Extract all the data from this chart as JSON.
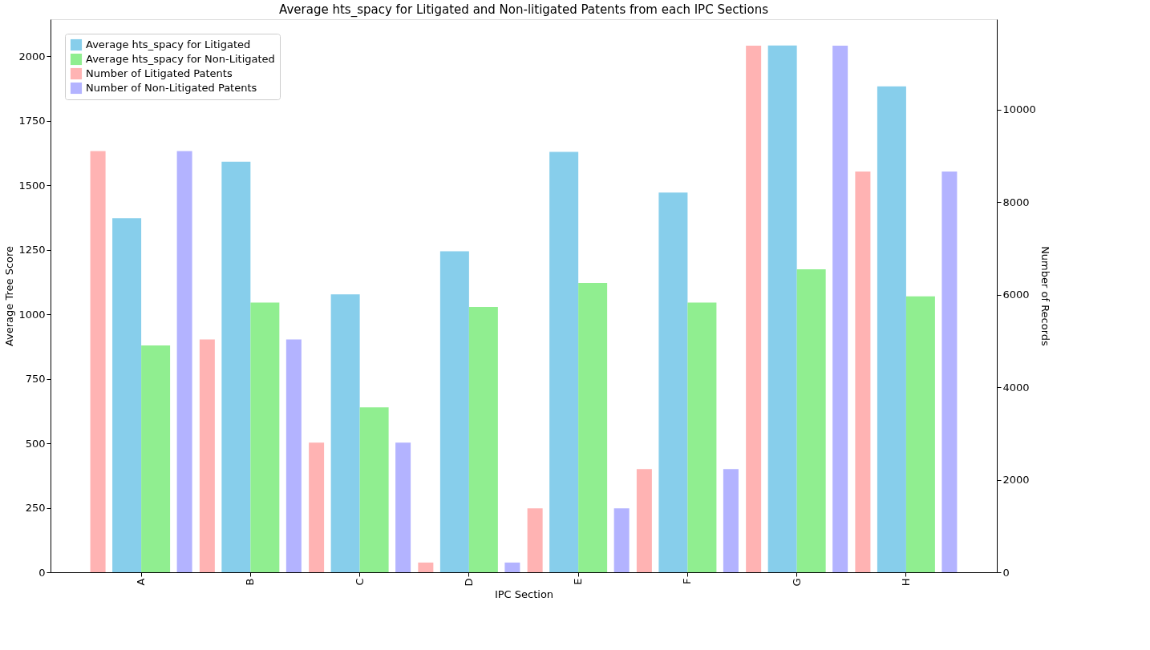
{
  "chart_data": {
    "type": "bar",
    "title": "Average hts_spacy for Litigated and Non-litigated Patents from each IPC Sections",
    "xlabel": "IPC Section",
    "ylabel": "Average Tree Score",
    "y2label": "Number of Records",
    "categories": [
      "A",
      "B",
      "C",
      "D",
      "E",
      "F",
      "G",
      "H"
    ],
    "series": [
      {
        "name": "Average hts_spacy for Litigated",
        "color": "#87ceeb",
        "values": [
          1372,
          1591,
          1077,
          1244,
          1629,
          1471,
          2041,
          1883
        ]
      },
      {
        "name": "Average hts_spacy for Non-Litigated",
        "color": "#90ee90",
        "values": [
          879,
          1045,
          639,
          1028,
          1121,
          1045,
          1174,
          1069
        ]
      },
      {
        "name": "Number of Litigated Patents",
        "color": "#ffb3b3",
        "axis": "y2",
        "values": [
          9100,
          5030,
          2800,
          210,
          1380,
          2230,
          11380,
          8660
        ]
      },
      {
        "name": "Number of Non-Litigated Patents",
        "color": "#b3b3ff",
        "axis": "y2",
        "values": [
          9100,
          5030,
          2800,
          210,
          1380,
          2230,
          11380,
          8660
        ]
      }
    ],
    "ylim": [
      0,
      2143
    ],
    "yticks": [
      0,
      250,
      500,
      750,
      1000,
      1250,
      1500,
      1750,
      2000
    ],
    "y2lim": [
      0,
      11950
    ],
    "y2ticks": [
      0,
      2000,
      4000,
      6000,
      8000,
      10000
    ],
    "grid": false,
    "legend": "top left"
  }
}
